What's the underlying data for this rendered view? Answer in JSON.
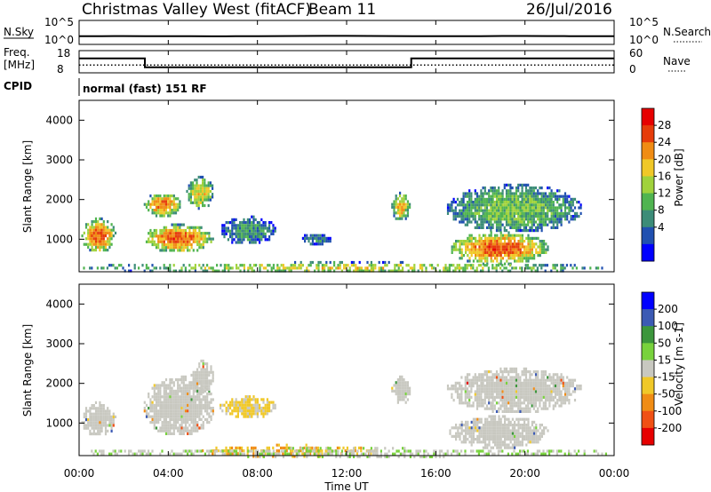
{
  "header": {
    "station": "Christmas Valley West (fitACF)",
    "beam": "Beam 11",
    "date": "26/Jul/2016"
  },
  "noise_panel": {
    "left_label": "N.Sky",
    "left_ticks": [
      "10^5",
      "10^0"
    ],
    "right_label": "N.Search",
    "right_ticks": [
      "10^5",
      "10^0"
    ]
  },
  "freq_panel": {
    "left_label_line1": "Freq.",
    "left_label_line2": "[MHz]",
    "left_ticks": [
      "18",
      "8"
    ],
    "right_label": "Nave",
    "right_ticks": [
      "60",
      "0"
    ]
  },
  "cpid": {
    "label": "CPID",
    "value": "normal (fast) 151 RF"
  },
  "power_panel": {
    "ylabel": "Slant Range [km]",
    "yticks": [
      "4000",
      "3000",
      "2000",
      "1000"
    ],
    "colorbar_label": "Power [dB]",
    "colorbar_ticks": [
      "28",
      "24",
      "20",
      "16",
      "12",
      "8",
      "4"
    ]
  },
  "velocity_panel": {
    "ylabel": "Slant Range [km]",
    "yticks": [
      "4000",
      "3000",
      "2000",
      "1000"
    ],
    "colorbar_label": "Velocity [m s-1]",
    "colorbar_ticks": [
      "200",
      "100",
      "50",
      "15",
      "-15",
      "-50",
      "-100",
      "-200"
    ]
  },
  "xaxis": {
    "label": "Time UT",
    "ticks": [
      "00:00",
      "04:00",
      "08:00",
      "12:00",
      "16:00",
      "20:00",
      "00:00"
    ]
  },
  "colors": {
    "power_scale": [
      "#0000ff",
      "#2050b0",
      "#3c8c78",
      "#50b450",
      "#a0d23c",
      "#f0c828",
      "#f08c14",
      "#e63c0a",
      "#e60000"
    ],
    "velocity_scale": [
      "#e60000",
      "#f05014",
      "#f08c14",
      "#f0c828",
      "#c8c8c0",
      "#78d23c",
      "#3c963c",
      "#3c5ab4",
      "#0000ff"
    ],
    "ground_scatter": "#c8c8c0"
  },
  "chart_data": [
    {
      "type": "line",
      "name_ref": "noise",
      "x_hours": [
        0,
        1,
        2,
        3,
        4,
        5,
        6,
        7,
        8,
        9,
        10,
        11,
        12,
        13,
        14,
        15,
        16,
        17,
        18,
        19,
        20,
        21,
        22,
        23,
        24
      ],
      "log_noise": [
        0.8,
        0.8,
        0.82,
        0.8,
        0.78,
        0.78,
        0.76,
        0.78,
        0.8,
        0.82,
        0.84,
        0.86,
        0.86,
        0.84,
        0.82,
        0.8,
        0.78,
        0.78,
        0.8,
        0.84,
        0.84,
        0.82,
        0.8,
        0.8,
        0.8
      ],
      "ylim_log10": [
        0,
        5
      ]
    },
    {
      "type": "line",
      "name_ref": "frequency",
      "x_hours": [
        0,
        2.95,
        2.95,
        14.9,
        14.9,
        24
      ],
      "freq_mhz": [
        14.5,
        14.5,
        10.5,
        10.5,
        14.5,
        14.5
      ],
      "ylim": [
        8,
        18
      ],
      "nave_level": 21,
      "nave_ylim": [
        0,
        60
      ]
    },
    {
      "type": "heatmap",
      "name_ref": "power",
      "x_range_hours": [
        0,
        24
      ],
      "y_range_km": [
        180,
        4500
      ],
      "value_range_db": [
        0,
        32
      ],
      "regions": [
        {
          "t0": 0.1,
          "t1": 1.6,
          "r0": 700,
          "r1": 1550,
          "peak_db": 26,
          "kind": "ionospheric"
        },
        {
          "t0": 2.9,
          "t1": 4.5,
          "r0": 1600,
          "r1": 2200,
          "peak_db": 25,
          "kind": "ionospheric"
        },
        {
          "t0": 2.9,
          "t1": 6.0,
          "r0": 700,
          "r1": 1400,
          "peak_db": 26,
          "kind": "ionospheric"
        },
        {
          "t0": 4.8,
          "t1": 6.0,
          "r0": 1800,
          "r1": 2600,
          "peak_db": 20,
          "kind": "ionospheric"
        },
        {
          "t0": 6.3,
          "t1": 8.8,
          "r0": 900,
          "r1": 1600,
          "peak_db": 10,
          "kind": "ionospheric"
        },
        {
          "t0": 10.0,
          "t1": 11.3,
          "r0": 900,
          "r1": 1200,
          "peak_db": 9,
          "kind": "ionospheric"
        },
        {
          "t0": 14.0,
          "t1": 14.8,
          "r0": 1500,
          "r1": 2200,
          "peak_db": 22,
          "kind": "ionospheric"
        },
        {
          "t0": 16.5,
          "t1": 22.5,
          "r0": 1200,
          "r1": 2400,
          "peak_db": 14,
          "kind": "ionospheric"
        },
        {
          "t0": 16.6,
          "t1": 21.0,
          "r0": 400,
          "r1": 1200,
          "peak_db": 27,
          "kind": "ground"
        },
        {
          "t0": 0.0,
          "t1": 24.0,
          "r0": 180,
          "r1": 450,
          "peak_db": 18,
          "kind": "near-range"
        }
      ]
    },
    {
      "type": "heatmap",
      "name_ref": "velocity",
      "x_range_hours": [
        0,
        24
      ],
      "y_range_km": [
        180,
        4500
      ],
      "value_range_ms": [
        -250,
        250
      ],
      "regions": [
        {
          "t0": 0.1,
          "t1": 1.6,
          "r0": 700,
          "r1": 1550,
          "velocity": 0,
          "kind": "ground"
        },
        {
          "t0": 2.9,
          "t1": 6.0,
          "r0": 700,
          "r1": 2200,
          "velocity": 0,
          "kind": "ground"
        },
        {
          "t0": 5.0,
          "t1": 6.0,
          "r0": 1800,
          "r1": 2600,
          "velocity": 0,
          "kind": "ground"
        },
        {
          "t0": 6.3,
          "t1": 8.8,
          "r0": 1150,
          "r1": 1700,
          "velocity": -40,
          "kind": "ionospheric"
        },
        {
          "t0": 14.0,
          "t1": 14.8,
          "r0": 1500,
          "r1": 2200,
          "velocity": 0,
          "kind": "ground"
        },
        {
          "t0": 16.5,
          "t1": 22.5,
          "r0": 1300,
          "r1": 2400,
          "velocity": 0,
          "kind": "ground"
        },
        {
          "t0": 16.6,
          "t1": 21.0,
          "r0": 400,
          "r1": 1200,
          "velocity": 0,
          "kind": "ground"
        },
        {
          "t0": 5.5,
          "t1": 13.5,
          "r0": 180,
          "r1": 480,
          "velocity": -80,
          "kind": "near-range"
        },
        {
          "t0": 0.0,
          "t1": 24.0,
          "r0": 180,
          "r1": 400,
          "velocity": 20,
          "kind": "near-range"
        }
      ]
    }
  ]
}
